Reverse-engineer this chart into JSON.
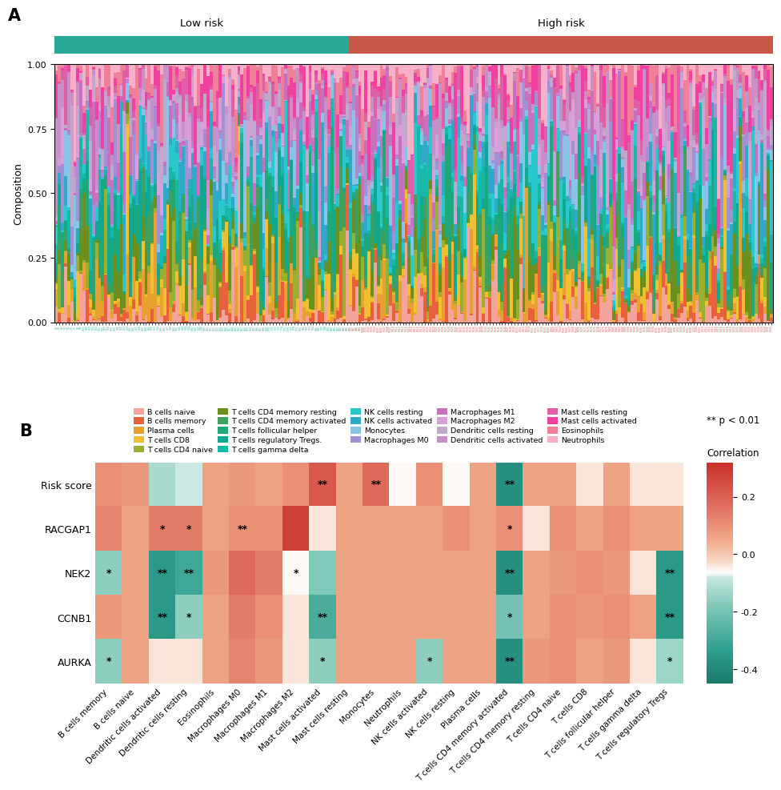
{
  "n_samples": 232,
  "n_low_risk": 95,
  "n_high_risk": 137,
  "bar_colors": [
    "#F4A49A",
    "#E8603C",
    "#E8A030",
    "#F0C030",
    "#9BB030",
    "#6B9020",
    "#40A060",
    "#20A878",
    "#10A890",
    "#18B8A8",
    "#28C8CC",
    "#30A8C8",
    "#88C4E8",
    "#A090D4",
    "#C870C0",
    "#D8A0D8",
    "#C0A8CC",
    "#C890C8",
    "#E060A8",
    "#F040A0",
    "#F08098",
    "#F8B0C8"
  ],
  "cell_types_legend": [
    "B cells naive",
    "B cells memory",
    "Plasma cells",
    "T cells CD8",
    "T cells CD4 naive",
    "T cells CD4 memory resting",
    "T cells CD4 memory activated",
    "T cells follicular helper",
    "T cells regulatory Tregs.",
    "T cells gamma delta",
    "NK cells resting",
    "NK cells activated",
    "Monocytes",
    "Macrophages M0",
    "Macrophages M1",
    "Macrophages M2",
    "Dendritic cells resting",
    "Dendritic cells activated",
    "Mast cells resting",
    "Mast cells activated",
    "Eosinophils",
    "Neutrophils"
  ],
  "low_risk_color": "#2aA898",
  "high_risk_color": "#C85848",
  "heatmap_rows": [
    "Risk score",
    "RACGAP1",
    "NEK2",
    "CCNB1",
    "AURKA"
  ],
  "heatmap_cols": [
    "B cells memory",
    "B cells naive",
    "Dendritic cells activated",
    "Dendritic cells resting",
    "Eosinophils",
    "Macrophages M0",
    "Macrophages M1",
    "Macrophages M2",
    "Mast cells activated",
    "Mast cells resting",
    "Monocytes",
    "Neutrophils",
    "NK cells activated",
    "NK cells resting",
    "Plasma cells",
    "T cells CD4 memory activated",
    "T cells CD4 memory resting",
    "T cells CD4 naive",
    "T cells CD8",
    "T cells follicular helper",
    "T cells gamma delta",
    "T cells regulatory Tregs"
  ],
  "heatmap_values": [
    [
      0.1,
      0.08,
      -0.12,
      -0.08,
      0.06,
      0.08,
      0.06,
      0.1,
      0.22,
      0.06,
      0.18,
      -0.06,
      0.1,
      -0.06,
      0.06,
      -0.38,
      0.06,
      0.06,
      -0.04,
      0.06,
      -0.04,
      -0.04
    ],
    [
      0.12,
      0.06,
      0.14,
      0.14,
      0.06,
      0.1,
      0.1,
      0.28,
      -0.04,
      0.06,
      0.06,
      0.06,
      0.06,
      0.1,
      0.06,
      0.1,
      -0.04,
      0.1,
      0.06,
      0.1,
      0.06,
      0.06
    ],
    [
      -0.16,
      0.06,
      -0.35,
      -0.3,
      0.08,
      0.18,
      0.14,
      -0.06,
      -0.18,
      0.06,
      0.06,
      0.06,
      0.06,
      0.06,
      0.06,
      -0.38,
      0.06,
      0.08,
      0.1,
      0.08,
      -0.04,
      -0.35
    ],
    [
      0.08,
      0.06,
      -0.35,
      -0.16,
      0.06,
      0.14,
      0.1,
      -0.04,
      -0.28,
      0.06,
      0.06,
      0.06,
      0.06,
      0.06,
      0.06,
      -0.2,
      0.06,
      0.1,
      0.08,
      0.1,
      0.06,
      -0.35
    ],
    [
      -0.16,
      0.06,
      -0.04,
      -0.04,
      0.06,
      0.12,
      0.08,
      -0.04,
      -0.16,
      0.06,
      0.06,
      0.06,
      -0.16,
      0.06,
      0.06,
      -0.38,
      0.08,
      0.1,
      0.06,
      0.08,
      -0.04,
      -0.14
    ]
  ],
  "significance": [
    [
      null,
      null,
      null,
      null,
      null,
      null,
      null,
      null,
      "**",
      null,
      "**",
      null,
      null,
      null,
      null,
      "**",
      null,
      null,
      null,
      null,
      null,
      null
    ],
    [
      null,
      null,
      "*",
      "*",
      null,
      "**",
      null,
      null,
      null,
      null,
      null,
      null,
      null,
      null,
      null,
      "*",
      null,
      null,
      null,
      null,
      null,
      null
    ],
    [
      "*",
      null,
      "**",
      "**",
      null,
      null,
      null,
      "*",
      null,
      null,
      null,
      null,
      null,
      null,
      null,
      "**",
      null,
      null,
      null,
      null,
      null,
      "**"
    ],
    [
      null,
      null,
      "**",
      "*",
      null,
      null,
      null,
      null,
      "**",
      null,
      null,
      null,
      null,
      null,
      null,
      "*",
      null,
      null,
      null,
      null,
      null,
      "**"
    ],
    [
      "*",
      null,
      null,
      null,
      null,
      null,
      null,
      null,
      "*",
      null,
      null,
      null,
      "*",
      null,
      null,
      "**",
      null,
      null,
      null,
      null,
      null,
      "*"
    ]
  ],
  "colorbar_ticks": [
    0.2,
    0.0,
    -0.2,
    -0.4
  ],
  "vmin": -0.45,
  "vmax": 0.32,
  "title_fontsize": 12
}
